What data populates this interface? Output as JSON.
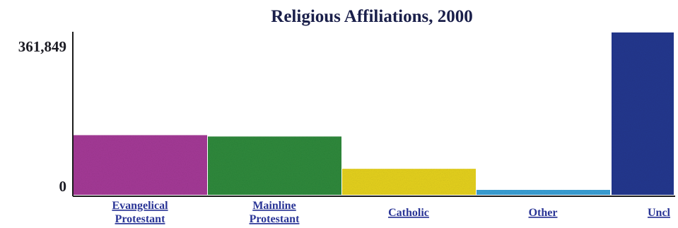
{
  "chart_data": {
    "type": "bar",
    "title": "Religious Affiliations, 2000",
    "categories": [
      [
        "Evangelical",
        "Protestant"
      ],
      [
        "Mainline",
        "Protestant"
      ],
      [
        "Catholic"
      ],
      [
        "Other"
      ],
      [
        "Uncl"
      ]
    ],
    "values": [
      133000,
      130000,
      58000,
      11000,
      361849
    ],
    "colors": [
      "#a53a97",
      "#2f8a3c",
      "#e6d21e",
      "#3aa0d6",
      "#23388f"
    ],
    "ylim": [
      0,
      361849
    ],
    "yticks": [
      "0",
      "361,849"
    ],
    "grid": false,
    "legend": "none"
  }
}
